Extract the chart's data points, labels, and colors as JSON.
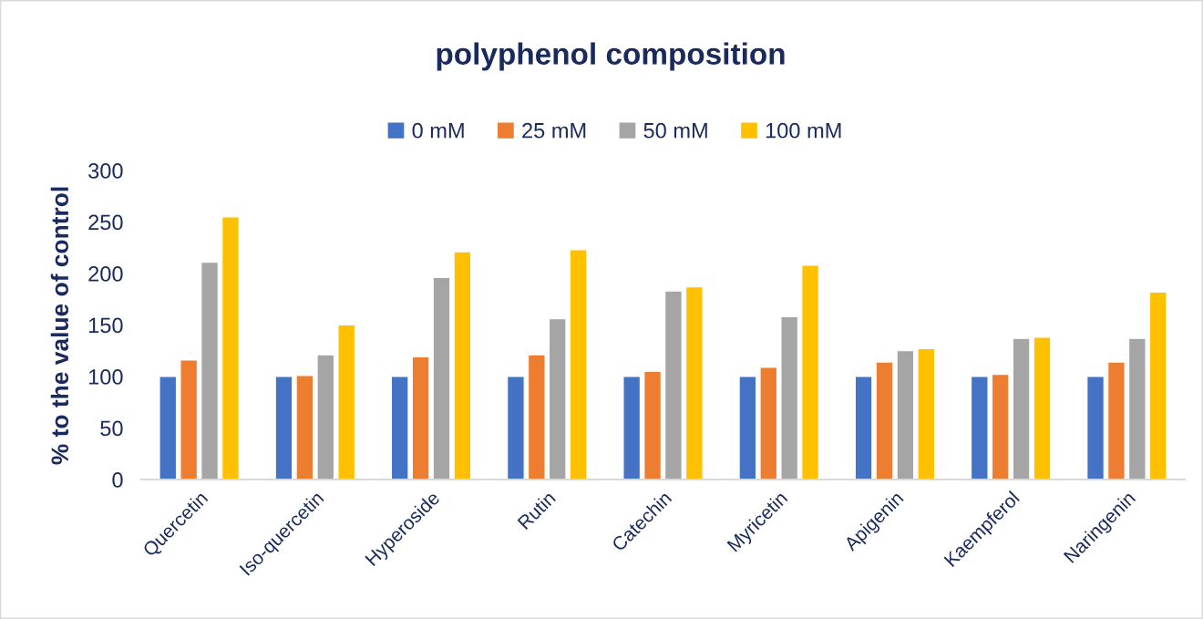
{
  "chart_data": {
    "type": "bar",
    "title": "polyphenol composition",
    "ylabel": "% to the value of control",
    "categories": [
      "Quercetin",
      "Iso-quercetin",
      "Hyperoside",
      "Rutin",
      "Catechin",
      "Myricetin",
      "Apigenin",
      "Kaempferol",
      "Naringenin"
    ],
    "series": [
      {
        "name": "0 mM",
        "color": "#4472c4",
        "values": [
          100,
          100,
          100,
          100,
          100,
          100,
          100,
          100,
          100
        ]
      },
      {
        "name": "25 mM",
        "color": "#ed7d31",
        "values": [
          116,
          101,
          119,
          121,
          105,
          109,
          114,
          102,
          114
        ]
      },
      {
        "name": "50 mM",
        "color": "#a5a5a5",
        "values": [
          211,
          121,
          196,
          156,
          183,
          158,
          125,
          137,
          137
        ]
      },
      {
        "name": "100 mM",
        "color": "#ffc000",
        "values": [
          255,
          150,
          221,
          223,
          187,
          208,
          127,
          138,
          182
        ]
      }
    ],
    "ylim": [
      0,
      300
    ],
    "yticks": [
      0,
      50,
      100,
      150,
      200,
      250,
      300
    ],
    "grid": false,
    "legend": "top"
  }
}
